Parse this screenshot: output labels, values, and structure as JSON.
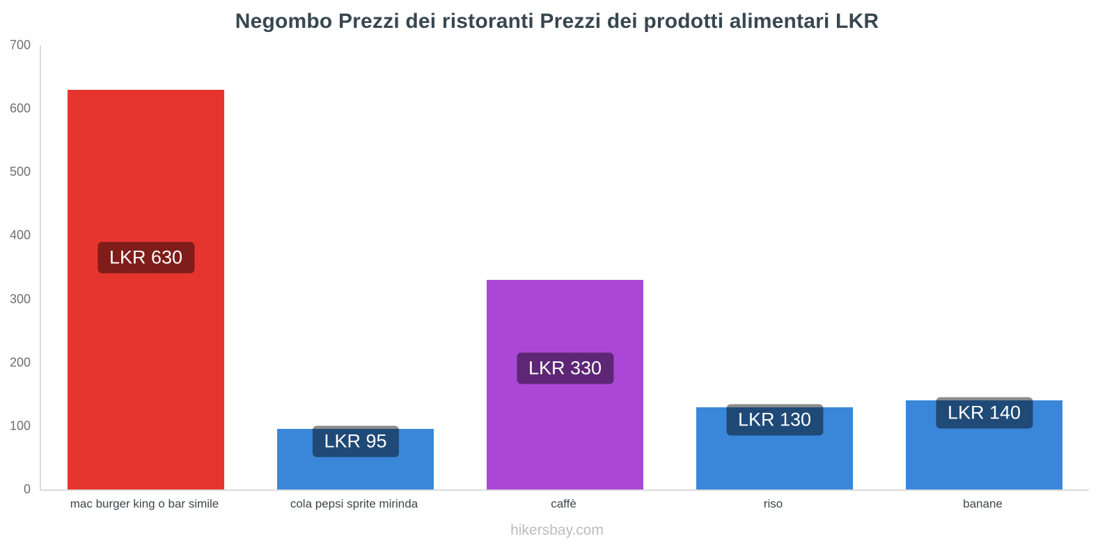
{
  "title": "Negombo Prezzi dei ristoranti Prezzi dei prodotti alimentari LKR",
  "footer": "hikersbay.com",
  "colors": {
    "red_bar": "#e6352f",
    "blue_bar": "#3a87d9",
    "purple_bar": "#ab47d6",
    "label_overlay": "rgba(0,0,0,0.45)",
    "axis_line": "#dcdcdc",
    "title_text": "#37474f",
    "tick_text": "#6e6e6e",
    "footer_text": "#bdbdbd"
  },
  "chart_data": {
    "type": "bar",
    "title": "Negombo Prezzi dei ristoranti Prezzi dei prodotti alimentari LKR",
    "categories": [
      "mac burger king o bar simile",
      "cola pepsi sprite mirinda",
      "caffè",
      "riso",
      "banane"
    ],
    "values": [
      630,
      95,
      330,
      130,
      140
    ],
    "labels": [
      "LKR 630",
      "LKR 95",
      "LKR 330",
      "LKR 130",
      "LKR 140"
    ],
    "bar_colors": [
      "#e6352f",
      "#3a87d9",
      "#ab47d6",
      "#3a87d9",
      "#3a87d9"
    ],
    "currency": "LKR",
    "xlabel": "",
    "ylabel": "",
    "ylim": [
      0,
      700
    ],
    "yticks": [
      0,
      100,
      200,
      300,
      400,
      500,
      600,
      700
    ],
    "grid": false,
    "legend": false,
    "watermark": "hikersbay.com"
  }
}
